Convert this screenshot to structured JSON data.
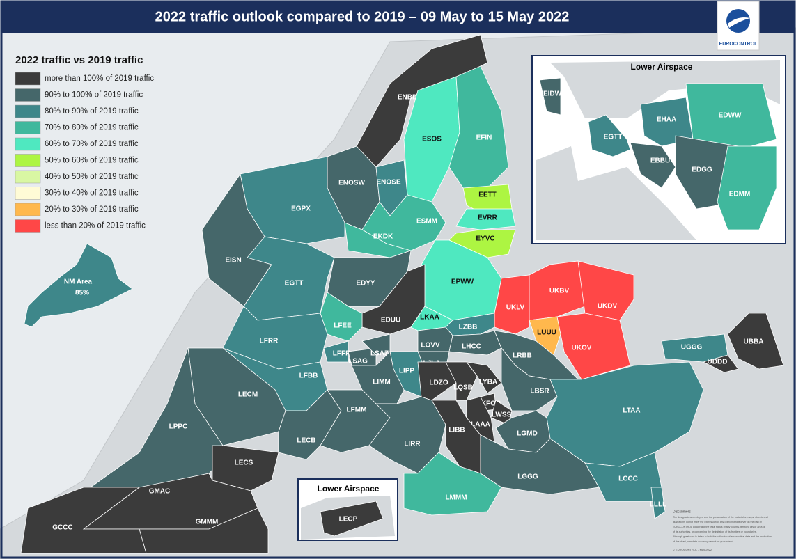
{
  "header": {
    "title": "2022 traffic outlook compared to 2019 – 09 May to 15 May 2022",
    "logo_text": "EUROCONTROL"
  },
  "legend": {
    "title": "2022 traffic vs 2019 traffic",
    "items": [
      {
        "label": "more than 100% of 2019 traffic",
        "color": "#3b3b3b"
      },
      {
        "label": "90% to 100% of 2019 traffic",
        "color": "#45676a"
      },
      {
        "label": "80% to 90% of 2019 traffic",
        "color": "#3e878a"
      },
      {
        "label": "70% to 80% of 2019 traffic",
        "color": "#40b89d"
      },
      {
        "label": "60% to 70% of 2019 traffic",
        "color": "#4fe8c0"
      },
      {
        "label": "50% to 60% of 2019 traffic",
        "color": "#adf542"
      },
      {
        "label": "40% to 50% of 2019 traffic",
        "color": "#d9f7a3"
      },
      {
        "label": "30% to 40% of 2019 traffic",
        "color": "#fffbd6"
      },
      {
        "label": "20% to 30% of 2019 traffic",
        "color": "#ffb84d"
      },
      {
        "label": "less than 20% of 2019 traffic",
        "color": "#ff4747"
      }
    ]
  },
  "nm_area": {
    "label": "NM Area",
    "value": "85%",
    "color": "#3e878a"
  },
  "regions": [
    {
      "label": "ENBD",
      "color": "#3b3b3b"
    },
    {
      "label": "ESOS",
      "color": "#4fe8c0"
    },
    {
      "label": "EFIN",
      "color": "#40b89d"
    },
    {
      "label": "ENOSW",
      "color": "#45676a"
    },
    {
      "label": "ENOSE",
      "color": "#3e878a"
    },
    {
      "label": "EGPX",
      "color": "#3e878a"
    },
    {
      "label": "EISN",
      "color": "#45676a"
    },
    {
      "label": "ESMM",
      "color": "#40b89d"
    },
    {
      "label": "EETT",
      "color": "#adf542"
    },
    {
      "label": "EVRR",
      "color": "#4fe8c0"
    },
    {
      "label": "EYVC",
      "color": "#adf542"
    },
    {
      "label": "EKDK",
      "color": "#40b89d"
    },
    {
      "label": "EGTT",
      "color": "#3e878a"
    },
    {
      "label": "EDYY",
      "color": "#45676a"
    },
    {
      "label": "EPWW",
      "color": "#4fe8c0"
    },
    {
      "label": "EDUU",
      "color": "#3b3b3b"
    },
    {
      "label": "LKAA",
      "color": "#4fe8c0"
    },
    {
      "label": "LFEE",
      "color": "#40b89d"
    },
    {
      "label": "LFRR",
      "color": "#3e878a"
    },
    {
      "label": "UKLV",
      "color": "#ff4747"
    },
    {
      "label": "UKBV",
      "color": "#ff4747"
    },
    {
      "label": "UKDV",
      "color": "#ff4747"
    },
    {
      "label": "LUUU",
      "color": "#ffb84d"
    },
    {
      "label": "UKOV",
      "color": "#ff4747"
    },
    {
      "label": "LZBB",
      "color": "#3e878a"
    },
    {
      "label": "LOVV",
      "color": "#45676a"
    },
    {
      "label": "LHCC",
      "color": "#45676a"
    },
    {
      "label": "LRBB",
      "color": "#45676a"
    },
    {
      "label": "LFFF",
      "color": "#3e878a"
    },
    {
      "label": "LSAG",
      "color": "#45676a"
    },
    {
      "label": "LSAZ",
      "color": "#45676a"
    },
    {
      "label": "LFBB",
      "color": "#3e878a"
    },
    {
      "label": "LJLA",
      "color": "#45676a"
    },
    {
      "label": "LIPP",
      "color": "#3e878a"
    },
    {
      "label": "LIMM",
      "color": "#45676a"
    },
    {
      "label": "LDZO",
      "color": "#3b3b3b"
    },
    {
      "label": "LQSB",
      "color": "#3b3b3b"
    },
    {
      "label": "LYBA",
      "color": "#3b3b3b"
    },
    {
      "label": "KFOR",
      "color": "#3b3b3b"
    },
    {
      "label": "LWSS",
      "color": "#3b3b3b"
    },
    {
      "label": "LAAA",
      "color": "#3b3b3b"
    },
    {
      "label": "LBSR",
      "color": "#45676a"
    },
    {
      "label": "LTAA",
      "color": "#3e878a"
    },
    {
      "label": "UGGG",
      "color": "#3e878a"
    },
    {
      "label": "UDDD",
      "color": "#3b3b3b"
    },
    {
      "label": "UBBA",
      "color": "#3b3b3b"
    },
    {
      "label": "LECM",
      "color": "#45676a"
    },
    {
      "label": "LPPC",
      "color": "#45676a"
    },
    {
      "label": "LECB",
      "color": "#45676a"
    },
    {
      "label": "LFMM",
      "color": "#45676a"
    },
    {
      "label": "LIRR",
      "color": "#45676a"
    },
    {
      "label": "LIBB",
      "color": "#3b3b3b"
    },
    {
      "label": "LGMD",
      "color": "#45676a"
    },
    {
      "label": "LGGG",
      "color": "#45676a"
    },
    {
      "label": "LCCC",
      "color": "#3e878a"
    },
    {
      "label": "LLLL",
      "color": "#3e878a"
    },
    {
      "label": "LMMM",
      "color": "#40b89d"
    },
    {
      "label": "LECS",
      "color": "#3b3b3b"
    },
    {
      "label": "GMAC",
      "color": "#3b3b3b"
    },
    {
      "label": "GMMM",
      "color": "#3b3b3b"
    },
    {
      "label": "GCCC",
      "color": "#3b3b3b"
    }
  ],
  "inset_upper": {
    "title": "Lower Airspace",
    "regions": [
      {
        "label": "EIDW",
        "color": "#45676a"
      },
      {
        "label": "EGTT",
        "color": "#3e878a"
      },
      {
        "label": "EHAA",
        "color": "#3e878a"
      },
      {
        "label": "EDWW",
        "color": "#40b89d"
      },
      {
        "label": "EBBU",
        "color": "#45676a"
      },
      {
        "label": "EDGG",
        "color": "#45676a"
      },
      {
        "label": "EDMM",
        "color": "#40b89d"
      }
    ]
  },
  "inset_lower": {
    "title": "Lower Airspace",
    "regions": [
      {
        "label": "LECP",
        "color": "#3b3b3b"
      }
    ]
  },
  "disclaimer": {
    "title": "Disclaimers",
    "body": [
      "The designations employed and the presentation of the material on maps, objects and",
      "illustrations do not imply the expression of any opinion whatsoever on the part of",
      "EUROCONTROL concerning the legal status of any country, territory, city or area or",
      "of its authorities, or concerning the delimitation of its frontiers or boundaries.",
      "Although great care is taken in both the collection of aeronautical data and the production",
      "of this chart, complete accuracy cannot be guaranteed."
    ],
    "copyright": "© EUROCONTROL - May 2022"
  }
}
